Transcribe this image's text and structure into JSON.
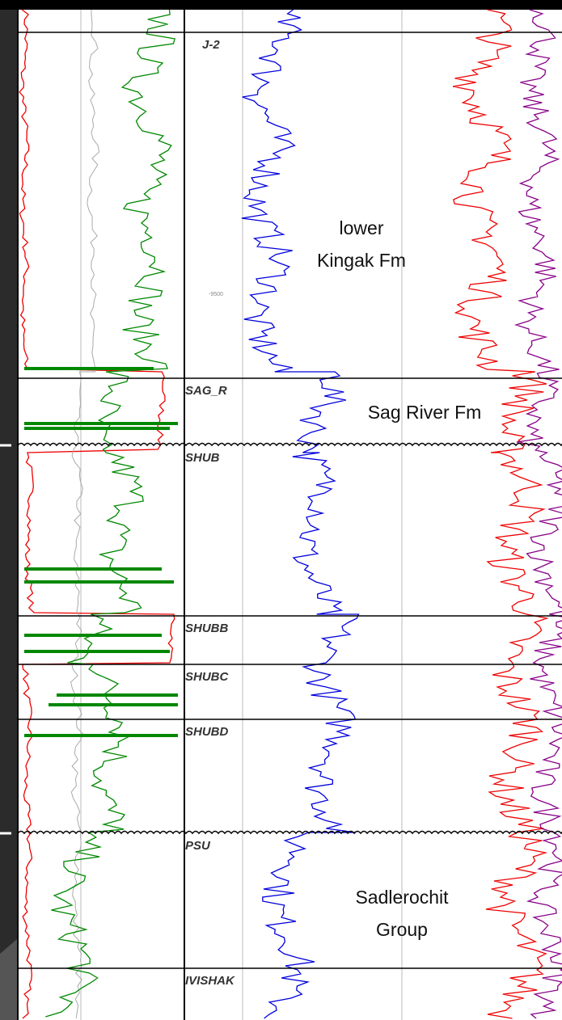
{
  "formation_tops": [
    {
      "label": "J-2"
    },
    {
      "label": "SAG_R"
    },
    {
      "label": "SHUB"
    },
    {
      "label": "SHUBB"
    },
    {
      "label": "SHUBC"
    },
    {
      "label": "SHUBD"
    },
    {
      "label": "PSU"
    },
    {
      "label": "IVISHAK"
    }
  ],
  "depth_label": "-9500",
  "annotations": [
    {
      "lines": [
        "lower",
        "Kingak Fm"
      ]
    },
    {
      "lines": [
        "Sag River Fm"
      ]
    },
    {
      "lines": [
        "Sadlerochit",
        "Group"
      ]
    }
  ]
}
